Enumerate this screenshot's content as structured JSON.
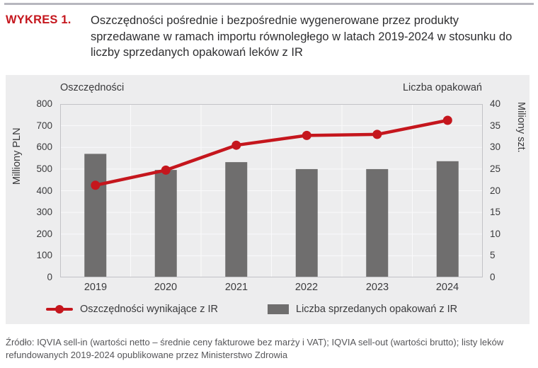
{
  "header": {
    "kicker": "WYKRES 1.",
    "title": "Oszczędności pośrednie i bezpośrednie wygenerowane przez produkty sprzedawane w ramach importu równoległego w latach 2019-2024 w stosunku do liczby sprzedanych opakowań leków z IR"
  },
  "chart_headers": {
    "left": "Oszczędności",
    "right": "Liczba opakowań"
  },
  "chart_data": {
    "type": "bar+line combo",
    "categories": [
      "2019",
      "2020",
      "2021",
      "2022",
      "2023",
      "2024"
    ],
    "series": [
      {
        "name": "Oszczędności wynikające z IR",
        "type": "line",
        "axis": "left",
        "color": "#c5161d",
        "values": [
          425,
          495,
          610,
          655,
          660,
          725
        ]
      },
      {
        "name": "Liczba sprzedanych opakowań z IR",
        "type": "bar",
        "axis": "right",
        "color": "#6f6e6e",
        "values": [
          28.5,
          24.8,
          26.6,
          25,
          25,
          26.8
        ]
      }
    ],
    "left_axis": {
      "label": "Milliony PLN",
      "min": 0,
      "max": 800,
      "ticks": [
        800,
        700,
        600,
        500,
        400,
        300,
        200,
        100,
        0
      ]
    },
    "right_axis": {
      "label": "Miliony szt.",
      "min": 0,
      "max": 40,
      "ticks": [
        40,
        35,
        30,
        25,
        20,
        15,
        10,
        5,
        0
      ]
    },
    "grid": true,
    "legend_position": "bottom",
    "panel_background": "#ededee",
    "grid_color": "#fafafb"
  },
  "source": {
    "text": "Źródło: IQVIA sell-in (wartości netto – średnie ceny fakturowe bez marży i VAT); IQVIA sell-out (wartości brutto); listy leków refundowanych 2019-2024 opublikowane przez Ministerstwo Zdrowia"
  }
}
